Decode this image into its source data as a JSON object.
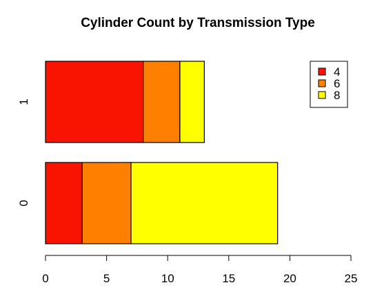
{
  "chart_data": {
    "type": "bar",
    "orientation": "horizontal",
    "stacked": true,
    "title": "Cylinder Count by Transmission Type",
    "xlabel": "",
    "ylabel": "",
    "categories": [
      "0",
      "1"
    ],
    "series": [
      {
        "name": "4",
        "color": "#f81400",
        "values": [
          3,
          8
        ]
      },
      {
        "name": "6",
        "color": "#ff7f00",
        "values": [
          4,
          3
        ]
      },
      {
        "name": "8",
        "color": "#ffff00",
        "values": [
          12,
          2
        ]
      }
    ],
    "xlim": [
      0,
      25
    ],
    "xticks": [
      0,
      5,
      10,
      15,
      20,
      25
    ],
    "grid": false,
    "legend_position": "top-right"
  }
}
